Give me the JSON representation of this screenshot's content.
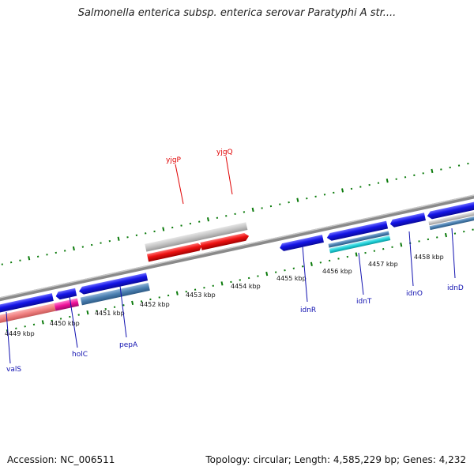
{
  "title": "Salmonella enterica subsp. enterica serovar Paratyphi A str....",
  "footer": {
    "accession": "Accession: NC_006511",
    "summary": "Topology: circular; Length: 4,585,229 bp; Genes: 4,232"
  },
  "ruler": [
    {
      "label": "4449 kbp"
    },
    {
      "label": "4450 kbp"
    },
    {
      "label": "4451 kbp"
    },
    {
      "label": "4452 kbp"
    },
    {
      "label": "4453 kbp"
    },
    {
      "label": "4454 kbp"
    },
    {
      "label": "4455 kbp"
    },
    {
      "label": "4456 kbp"
    },
    {
      "label": "4457 kbp"
    },
    {
      "label": "4458 kbp"
    }
  ],
  "genes_above": [
    {
      "name": "yjgP"
    },
    {
      "name": "yjgQ"
    }
  ],
  "genes_below": [
    {
      "name": "valS"
    },
    {
      "name": "holC"
    },
    {
      "name": "pepA"
    },
    {
      "name": "idnR"
    },
    {
      "name": "idnT"
    },
    {
      "name": "idnO"
    },
    {
      "name": "idnD"
    }
  ],
  "colors": {
    "gene_blue": "#1414e6",
    "gene_red": "#ee1111",
    "gene_gray": "#c4c4c4",
    "steelblue": "#4a7fb0",
    "cyan": "#20d0d8",
    "pink": "#f08080",
    "magenta": "#ee1199",
    "tick_green": "#0a7a0a",
    "backbone": "#8a8a8a",
    "label_red": "#e00000",
    "label_blue": "#1010b0"
  }
}
